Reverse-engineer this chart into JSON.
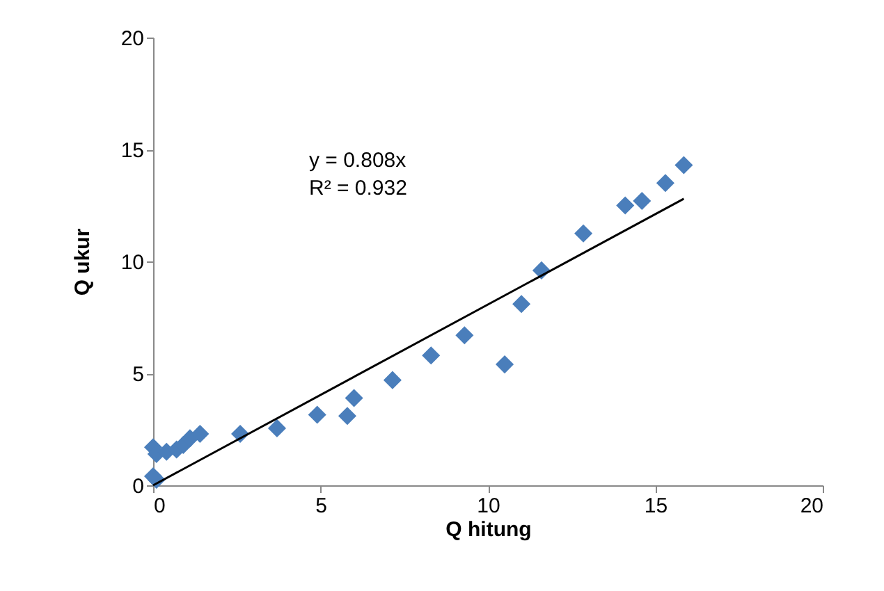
{
  "chart_data": {
    "type": "scatter",
    "xlabel": "Q hitung",
    "ylabel": "Q ukur",
    "xlim": [
      0,
      20
    ],
    "ylim": [
      0,
      20
    ],
    "xticks": [
      0,
      5,
      10,
      15,
      20
    ],
    "yticks": [
      0,
      5,
      10,
      15,
      20
    ],
    "grid": false,
    "annotations": [
      "y = 0.808x",
      "R² = 0.932"
    ],
    "series": [
      {
        "marker": "diamond",
        "color": "#4a7ebb",
        "x": [
          0,
          0,
          0.1,
          0.1,
          0.4,
          0.7,
          0.9,
          1.1,
          1.4,
          2.6,
          3.7,
          4.9,
          5.8,
          6.0,
          7.15,
          8.3,
          9.3,
          10.5,
          11.0,
          11.6,
          12.85,
          14.1,
          14.6,
          15.3,
          15.85
        ],
        "values": [
          1.7,
          0.4,
          0.25,
          1.4,
          1.5,
          1.6,
          1.8,
          2.1,
          2.3,
          2.3,
          2.55,
          3.15,
          3.1,
          3.9,
          4.7,
          5.8,
          6.7,
          5.4,
          8.1,
          9.6,
          11.25,
          12.5,
          12.7,
          13.5,
          14.3
        ]
      },
      {
        "type": "line",
        "color": "#000000",
        "x": [
          0,
          15.85
        ],
        "values": [
          0,
          12.8
        ]
      }
    ]
  }
}
